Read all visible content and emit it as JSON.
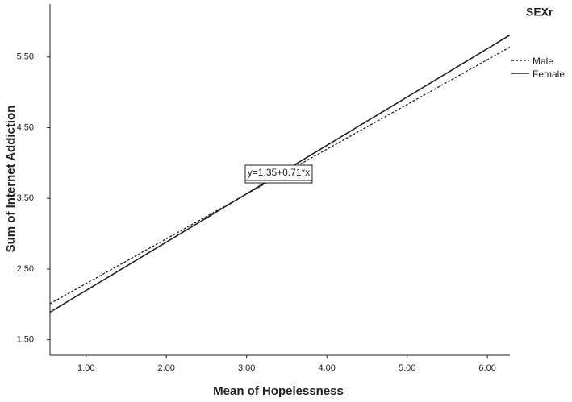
{
  "chart_data": {
    "type": "line",
    "x_label": "Mean of Hopelessness",
    "y_label": "Sum of Internet Addiction",
    "legend_title": "SEXr",
    "annotation": "y=1.35+0.71*x",
    "x": [
      0.55,
      6.28
    ],
    "series": [
      {
        "name": "Male",
        "color": "#222222",
        "line_style": "dashed",
        "values": [
          2.01,
          5.64
        ]
      },
      {
        "name": "Female",
        "color": "#222222",
        "line_style": "solid",
        "values": [
          1.89,
          5.81
        ]
      }
    ],
    "xlim": [
      0.55,
      6.28
    ],
    "xticks": [
      {
        "value": 1,
        "label": "1.00"
      },
      {
        "value": 2,
        "label": "2.00"
      },
      {
        "value": 3,
        "label": "3.00"
      },
      {
        "value": 4,
        "label": "4.00"
      },
      {
        "value": 5,
        "label": "5.00"
      },
      {
        "value": 6,
        "label": "6.00"
      }
    ],
    "ylim": [
      1.28,
      6.25
    ],
    "yticks": [
      {
        "value": 1.5,
        "label": "1.50"
      },
      {
        "value": 2.5,
        "label": "2.50"
      },
      {
        "value": 3.5,
        "label": "3.50"
      },
      {
        "value": 4.5,
        "label": "4.50"
      },
      {
        "value": 5.5,
        "label": "5.50"
      }
    ],
    "grid": false
  }
}
